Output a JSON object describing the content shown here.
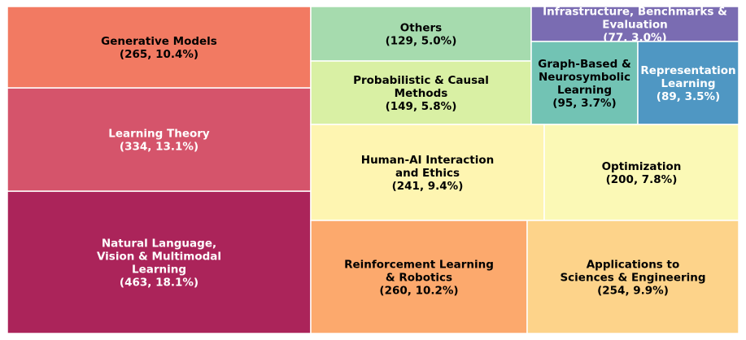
{
  "chart_data": {
    "type": "treemap",
    "title": "",
    "items": [
      {
        "id": "nlp",
        "name": "Natural Language,\nVision & Multimodal\nLearning",
        "count": 463,
        "percent": "18.1%",
        "color": "#ab245a",
        "text_color": "#ffffff"
      },
      {
        "id": "theory",
        "name": "Learning Theory",
        "count": 334,
        "percent": "13.1%",
        "color": "#d5546b",
        "text_color": "#ffffff"
      },
      {
        "id": "generative",
        "name": "Generative Models",
        "count": 265,
        "percent": "10.4%",
        "color": "#f27a62",
        "text_color": "#000000"
      },
      {
        "id": "others",
        "name": "Others",
        "count": 129,
        "percent": "5.0%",
        "color": "#a6dbae",
        "text_color": "#000000"
      },
      {
        "id": "probabilistic",
        "name": "Probabilistic & Causal\nMethods",
        "count": 149,
        "percent": "5.8%",
        "color": "#d9f0a4",
        "text_color": "#000000"
      },
      {
        "id": "infra",
        "name": "Infrastructure, Benchmarks &\nEvaluation",
        "count": 77,
        "percent": "3.0%",
        "color": "#7a6cb2",
        "text_color": "#ffffff"
      },
      {
        "id": "graph",
        "name": "Graph-Based &\nNeurosymbolic\nLearning",
        "count": 95,
        "percent": "3.7%",
        "color": "#72c3b4",
        "text_color": "#000000"
      },
      {
        "id": "representation",
        "name": "Representation\nLearning",
        "count": 89,
        "percent": "3.5%",
        "color": "#4f97c3",
        "text_color": "#ffffff"
      },
      {
        "id": "hai",
        "name": "Human-AI Interaction\nand Ethics",
        "count": 241,
        "percent": "9.4%",
        "color": "#fef5b1",
        "text_color": "#000000"
      },
      {
        "id": "optimization",
        "name": "Optimization",
        "count": 200,
        "percent": "7.8%",
        "color": "#fbf9b6",
        "text_color": "#000000"
      },
      {
        "id": "rl",
        "name": "Reinforcement Learning\n& Robotics",
        "count": 260,
        "percent": "10.2%",
        "color": "#fca96d",
        "text_color": "#000000"
      },
      {
        "id": "applications",
        "name": "Applications to\nSciences & Engineering",
        "count": 254,
        "percent": "9.9%",
        "color": "#fdd38a",
        "text_color": "#000000"
      }
    ]
  }
}
